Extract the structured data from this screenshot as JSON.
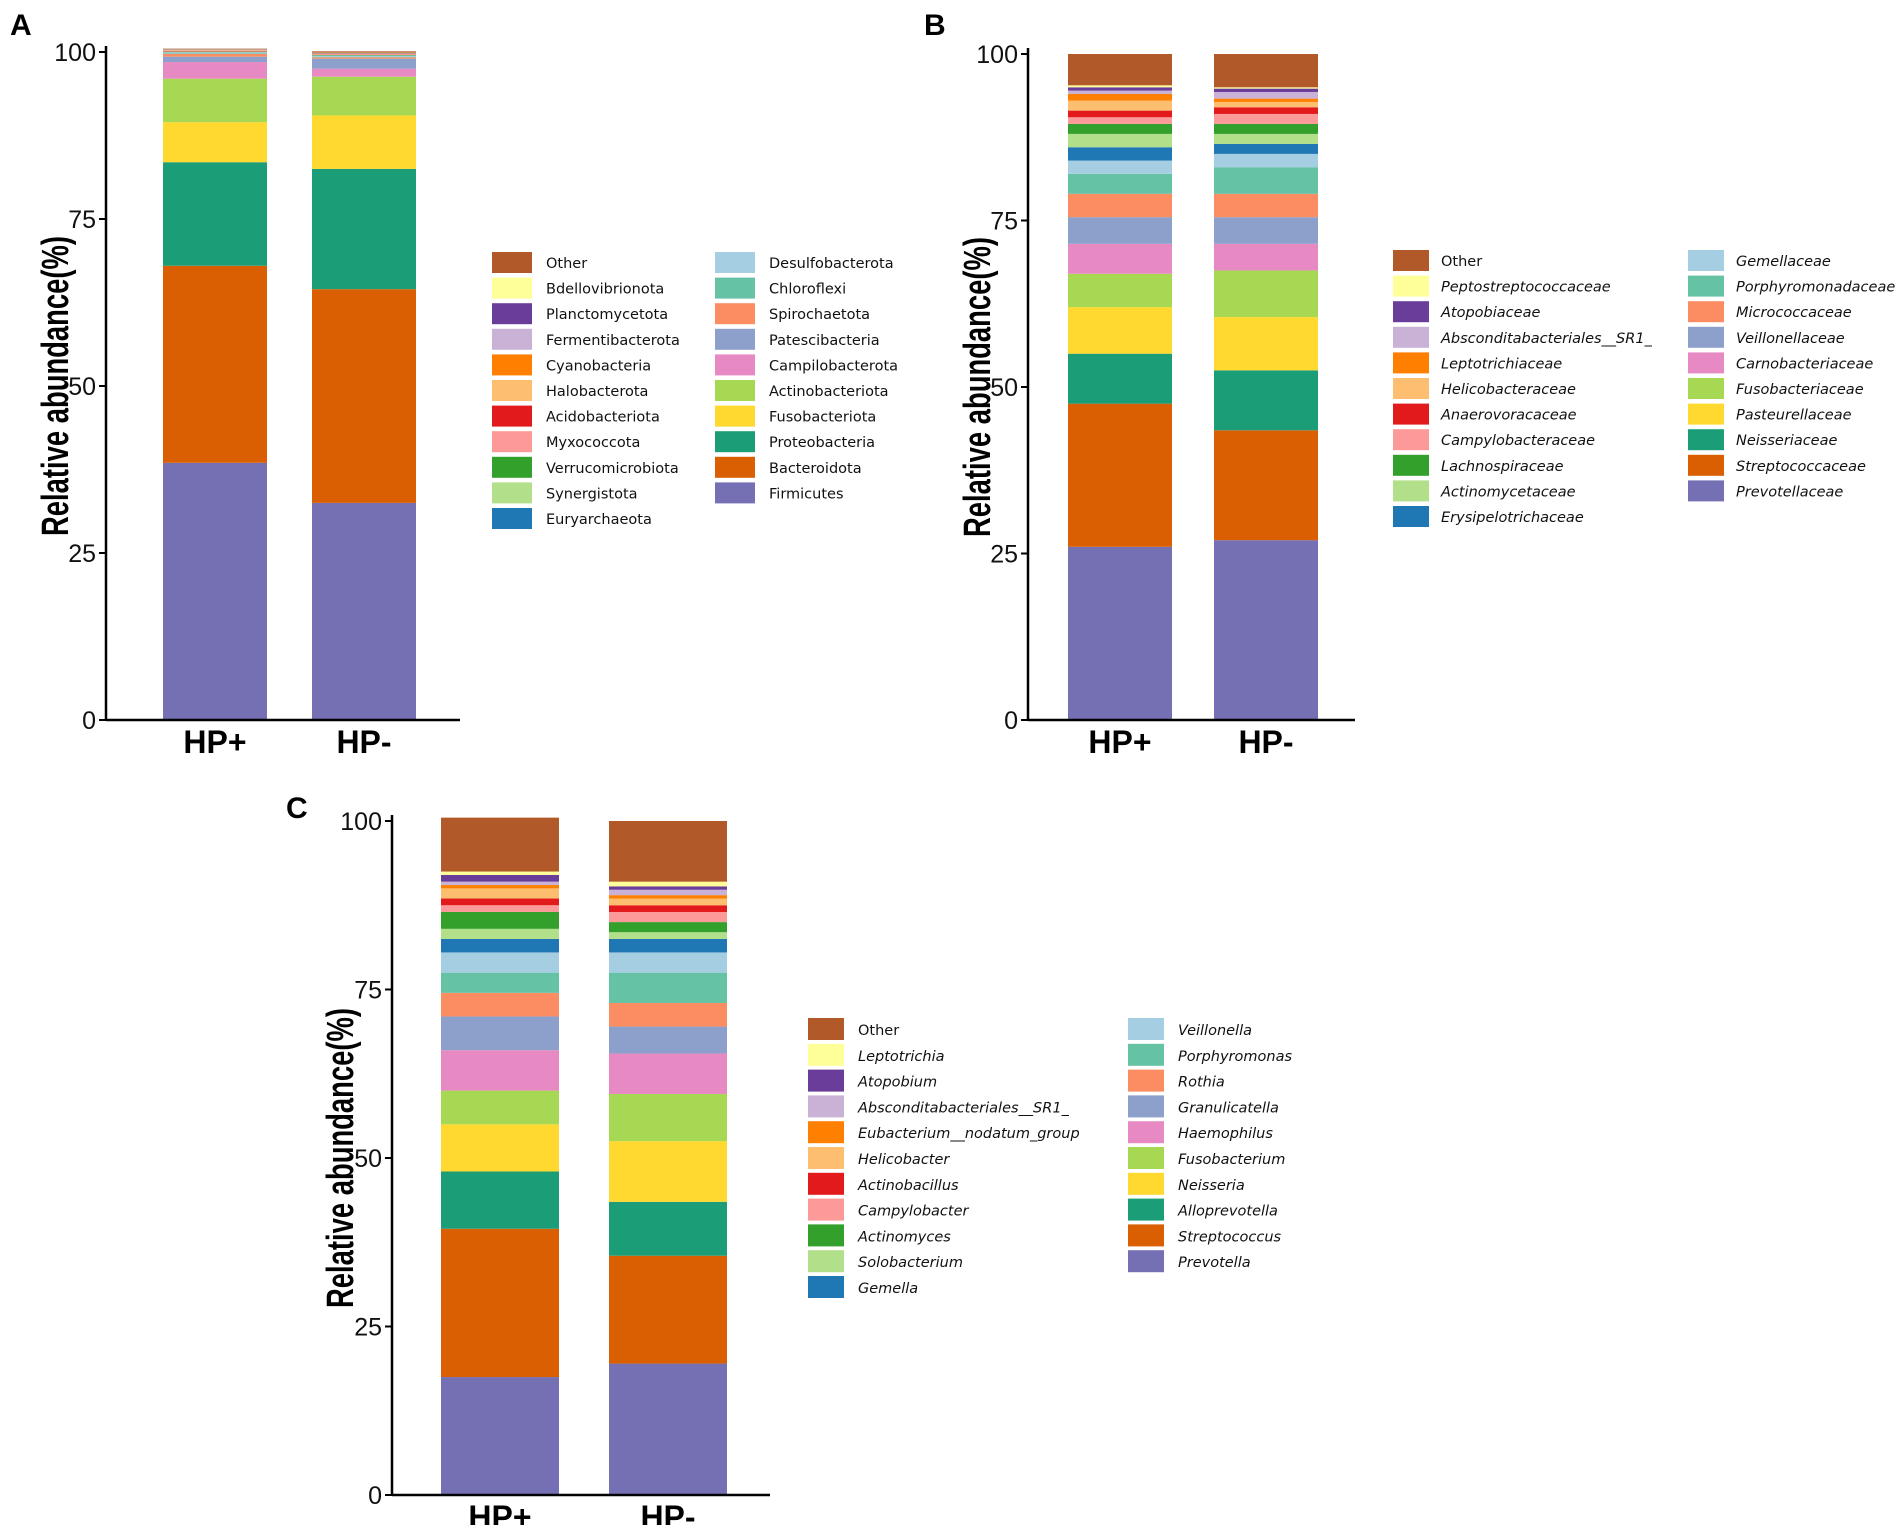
{
  "colors": {
    "Other": "#B15928",
    "c2": "#FFFF99",
    "c3": "#6A3D9A",
    "c4": "#CAB2D6",
    "c5": "#FF7F00",
    "c6": "#FDBF6F",
    "c7": "#E31A1C",
    "c8": "#FB9A99",
    "c9": "#33A02C",
    "c10": "#B2DF8A",
    "c11": "#1F78B4",
    "c12": "#A6CEE3",
    "c13": "#66C2A5",
    "c14": "#FC8D62",
    "c15": "#8DA0CB",
    "c16": "#E78AC3",
    "c17": "#A6D854",
    "c18": "#FFD92F",
    "c19": "#1B9E77",
    "c20": "#D95F02",
    "c21": "#7570B3"
  },
  "chart_data": [
    {
      "panel": "A",
      "type": "bar",
      "stacked": true,
      "ylabel": "Relative abundance(%)",
      "ylim": [
        0,
        100
      ],
      "yticks": [
        "0",
        "25",
        "50",
        "75",
        "100"
      ],
      "categories": [
        "HP+",
        "HP-"
      ],
      "italic_legend": false,
      "series": [
        {
          "name": "Firmicutes",
          "values": [
            38.5,
            32.5
          ]
        },
        {
          "name": "Bacteroidota",
          "values": [
            29.5,
            32.0
          ]
        },
        {
          "name": "Proteobacteria",
          "values": [
            15.5,
            18.0
          ]
        },
        {
          "name": "Fusobacteriota",
          "values": [
            6.0,
            8.0
          ]
        },
        {
          "name": "Actinobacteriota",
          "values": [
            6.5,
            5.8
          ]
        },
        {
          "name": "Campilobacterota",
          "values": [
            2.5,
            1.2
          ]
        },
        {
          "name": "Patescibacteria",
          "values": [
            0.8,
            1.5
          ]
        },
        {
          "name": "Spirochaetota",
          "values": [
            0.4,
            0.2
          ]
        },
        {
          "name": "Chloroflexi",
          "values": [
            0.1,
            0.1
          ]
        },
        {
          "name": "Desulfobacterota",
          "values": [
            0.1,
            0.1
          ]
        },
        {
          "name": "Euryarchaeota",
          "values": [
            0.05,
            0.05
          ]
        },
        {
          "name": "Synergistota",
          "values": [
            0.05,
            0.05
          ]
        },
        {
          "name": "Verrucomicrobiota",
          "values": [
            0.05,
            0.05
          ]
        },
        {
          "name": "Myxococcota",
          "values": [
            0.05,
            0.05
          ]
        },
        {
          "name": "Acidobacteriota",
          "values": [
            0.05,
            0.05
          ]
        },
        {
          "name": "Halobacterota",
          "values": [
            0.05,
            0.05
          ]
        },
        {
          "name": "Cyanobacteria",
          "values": [
            0.05,
            0.05
          ]
        },
        {
          "name": "Fermentibacterota",
          "values": [
            0.05,
            0.05
          ]
        },
        {
          "name": "Planctomycetota",
          "values": [
            0.05,
            0.05
          ]
        },
        {
          "name": "Bdellovibrionota",
          "values": [
            0.05,
            0.05
          ]
        },
        {
          "name": "Other",
          "values": [
            0.1,
            0.2
          ]
        }
      ],
      "legend": {
        "col1": [
          "Other",
          "Bdellovibrionota",
          "Planctomycetota",
          "Fermentibacterota",
          "Cyanobacteria",
          "Halobacterota",
          "Acidobacteriota",
          "Myxococcota",
          "Verrucomicrobiota",
          "Synergistota",
          "Euryarchaeota"
        ],
        "col2": [
          "Desulfobacterota",
          "Chloroflexi",
          "Spirochaetota",
          "Patescibacteria",
          "Campilobacterota",
          "Actinobacteriota",
          "Fusobacteriota",
          "Proteobacteria",
          "Bacteroidota",
          "Firmicutes"
        ]
      }
    },
    {
      "panel": "B",
      "type": "bar",
      "stacked": true,
      "ylabel": "Relative abundance(%)",
      "ylim": [
        0,
        100
      ],
      "yticks": [
        "0",
        "25",
        "50",
        "75",
        "100"
      ],
      "categories": [
        "HP+",
        "HP-"
      ],
      "italic_legend": true,
      "series": [
        {
          "name": "Prevotellaceae",
          "values": [
            26.0,
            27.0
          ]
        },
        {
          "name": "Streptococcaceae",
          "values": [
            21.5,
            16.5
          ]
        },
        {
          "name": "Neisseriaceae",
          "values": [
            7.5,
            9.0
          ]
        },
        {
          "name": "Pasteurellaceae",
          "values": [
            7.0,
            8.0
          ]
        },
        {
          "name": "Fusobacteriaceae",
          "values": [
            5.0,
            7.0
          ]
        },
        {
          "name": "Carnobacteriaceae",
          "values": [
            4.5,
            4.0
          ]
        },
        {
          "name": "Veillonellaceae",
          "values": [
            4.0,
            4.0
          ]
        },
        {
          "name": "Micrococcaceae",
          "values": [
            3.5,
            3.5
          ]
        },
        {
          "name": "Porphyromonadaceae",
          "values": [
            3.0,
            4.0
          ]
        },
        {
          "name": "Gemellaceae",
          "values": [
            2.0,
            2.0
          ]
        },
        {
          "name": "Erysipelotrichaceae",
          "values": [
            2.0,
            1.5
          ]
        },
        {
          "name": "Actinomycetaceae",
          "values": [
            2.0,
            1.5
          ]
        },
        {
          "name": "Lachnospiraceae",
          "values": [
            1.5,
            1.5
          ]
        },
        {
          "name": "Campylobacteraceae",
          "values": [
            1.0,
            1.5
          ]
        },
        {
          "name": "Anaerovoracaceae",
          "values": [
            1.0,
            1.0
          ]
        },
        {
          "name": "Helicobacteraceae",
          "values": [
            1.5,
            0.8
          ]
        },
        {
          "name": "Leptotrichiaceae",
          "values": [
            1.0,
            0.5
          ]
        },
        {
          "name": "Absconditabacteriales__SR1_",
          "values": [
            0.5,
            1.0
          ]
        },
        {
          "name": "Atopobiaceae",
          "values": [
            0.5,
            0.5
          ]
        },
        {
          "name": "Peptostreptococcaceae",
          "values": [
            0.3,
            0.2
          ]
        },
        {
          "name": "Other",
          "values": [
            4.7,
            5.0
          ]
        }
      ],
      "legend": {
        "col1": [
          "Other",
          "Peptostreptococcaceae",
          "Atopobiaceae",
          "Absconditabacteriales__SR1_",
          "Leptotrichiaceae",
          "Helicobacteraceae",
          "Anaerovoracaceae",
          "Campylobacteraceae",
          "Lachnospiraceae",
          "Actinomycetaceae",
          "Erysipelotrichaceae"
        ],
        "col2": [
          "Gemellaceae",
          "Porphyromonadaceae",
          "Micrococcaceae",
          "Veillonellaceae",
          "Carnobacteriaceae",
          "Fusobacteriaceae",
          "Pasteurellaceae",
          "Neisseriaceae",
          "Streptococcaceae",
          "Prevotellaceae"
        ]
      }
    },
    {
      "panel": "C",
      "type": "bar",
      "stacked": true,
      "ylabel": "Relative abundance(%)",
      "ylim": [
        0,
        100
      ],
      "yticks": [
        "0",
        "25",
        "50",
        "75",
        "100"
      ],
      "categories": [
        "HP+",
        "HP-"
      ],
      "italic_legend": true,
      "series": [
        {
          "name": "Prevotella",
          "values": [
            17.5,
            19.5
          ]
        },
        {
          "name": "Streptococcus",
          "values": [
            22.0,
            16.0
          ]
        },
        {
          "name": "Alloprevotella",
          "values": [
            8.5,
            8.0
          ]
        },
        {
          "name": "Neisseria",
          "values": [
            7.0,
            9.0
          ]
        },
        {
          "name": "Fusobacterium",
          "values": [
            5.0,
            7.0
          ]
        },
        {
          "name": "Haemophilus",
          "values": [
            6.0,
            6.0
          ]
        },
        {
          "name": "Granulicatella",
          "values": [
            5.0,
            4.0
          ]
        },
        {
          "name": "Rothia",
          "values": [
            3.5,
            3.5
          ]
        },
        {
          "name": "Porphyromonas",
          "values": [
            3.0,
            4.5
          ]
        },
        {
          "name": "Veillonella",
          "values": [
            3.0,
            3.0
          ]
        },
        {
          "name": "Gemella",
          "values": [
            2.0,
            2.0
          ]
        },
        {
          "name": "Solobacterium",
          "values": [
            1.5,
            1.0
          ]
        },
        {
          "name": "Actinomyces",
          "values": [
            2.5,
            1.5
          ]
        },
        {
          "name": "Campylobacter",
          "values": [
            1.0,
            1.5
          ]
        },
        {
          "name": "Actinobacillus",
          "values": [
            1.0,
            1.0
          ]
        },
        {
          "name": "Helicobacter",
          "values": [
            1.5,
            1.0
          ]
        },
        {
          "name": "Eubacterium__nodatum_group",
          "values": [
            0.5,
            0.5
          ]
        },
        {
          "name": "Absconditabacteriales__SR1_",
          "values": [
            0.5,
            0.8
          ]
        },
        {
          "name": "Atopobium",
          "values": [
            1.0,
            0.5
          ]
        },
        {
          "name": "Leptotrichia",
          "values": [
            0.5,
            0.7
          ]
        },
        {
          "name": "Other",
          "values": [
            8.0,
            9.0
          ]
        }
      ],
      "legend": {
        "col1": [
          "Other",
          "Leptotrichia",
          "Atopobium",
          "Absconditabacteriales__SR1_",
          "Eubacterium__nodatum_group",
          "Helicobacter",
          "Actinobacillus",
          "Campylobacter",
          "Actinomyces",
          "Solobacterium",
          "Gemella"
        ],
        "col2": [
          "Veillonella",
          "Porphyromonas",
          "Rothia",
          "Granulicatella",
          "Haemophilus",
          "Fusobacterium",
          "Neisseria",
          "Alloprevotella",
          "Streptococcus",
          "Prevotella"
        ]
      }
    }
  ]
}
